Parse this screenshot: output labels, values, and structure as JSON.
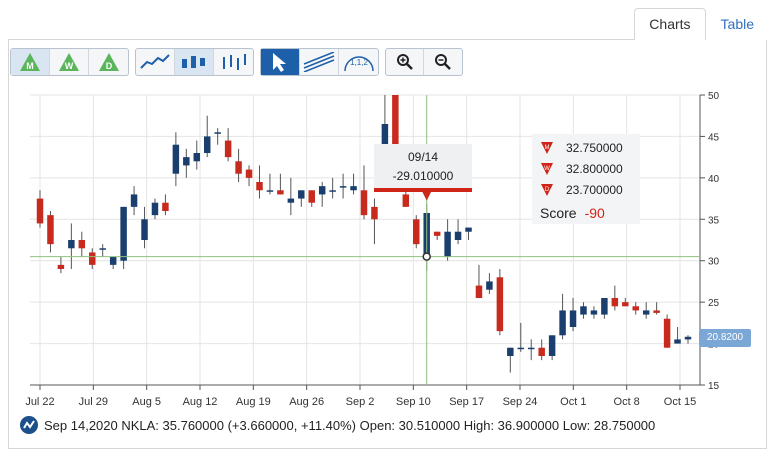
{
  "tabs": [
    {
      "label": "Charts",
      "active": true
    },
    {
      "label": "Table",
      "active": false
    }
  ],
  "toolbar": {
    "signal_buttons": [
      "M",
      "W",
      "D"
    ],
    "chart_type_icons": [
      "line-chart-icon",
      "candlestick-chart-icon",
      "ohlc-chart-icon"
    ],
    "tool_icons": [
      "pointer-icon",
      "trend-line-icon",
      "fibonacci-icon"
    ],
    "zoom_icons": [
      "zoom-in-icon",
      "zoom-out-icon"
    ]
  },
  "colors": {
    "up": "#1a3f6f",
    "down": "#c82a1e",
    "grid": "#e4e4e4",
    "crosshair": "#8fbf7f",
    "accent": "#2f6fbf"
  },
  "chart_data": {
    "type": "candlestick",
    "ylim": [
      15,
      50
    ],
    "yticks": [
      15,
      20,
      25,
      30,
      35,
      40,
      45,
      50
    ],
    "xticks": [
      "Jul 22",
      "Jul 29",
      "Aug 5",
      "Aug 12",
      "Aug 19",
      "Aug 26",
      "Sep 2",
      "Sep 10",
      "Sep 17",
      "Sep 24",
      "Oct 1",
      "Oct 8",
      "Oct 15"
    ],
    "candles": [
      {
        "o": 37.5,
        "h": 38.5,
        "l": 34.0,
        "c": 34.5
      },
      {
        "o": 35.5,
        "h": 36.0,
        "l": 31.0,
        "c": 32.0
      },
      {
        "o": 29.5,
        "h": 30.5,
        "l": 28.5,
        "c": 29.0
      },
      {
        "o": 31.5,
        "h": 34.5,
        "l": 29.0,
        "c": 32.5
      },
      {
        "o": 32.5,
        "h": 33.5,
        "l": 30.5,
        "c": 31.5
      },
      {
        "o": 31.0,
        "h": 31.5,
        "l": 29.0,
        "c": 29.5
      },
      {
        "o": 31.5,
        "h": 32.0,
        "l": 30.5,
        "c": 31.5
      },
      {
        "o": 29.5,
        "h": 30.5,
        "l": 29.0,
        "c": 30.5
      },
      {
        "o": 30.0,
        "h": 36.5,
        "l": 29.0,
        "c": 36.5
      },
      {
        "o": 36.5,
        "h": 39.0,
        "l": 35.5,
        "c": 38.0
      },
      {
        "o": 32.5,
        "h": 36.5,
        "l": 31.5,
        "c": 35.0
      },
      {
        "o": 35.5,
        "h": 37.5,
        "l": 35.0,
        "c": 37.0
      },
      {
        "o": 37.0,
        "h": 38.0,
        "l": 35.5,
        "c": 36.0
      },
      {
        "o": 40.5,
        "h": 45.5,
        "l": 39.0,
        "c": 44.0
      },
      {
        "o": 41.5,
        "h": 43.5,
        "l": 40.0,
        "c": 42.5
      },
      {
        "o": 42.0,
        "h": 44.5,
        "l": 41.0,
        "c": 43.0
      },
      {
        "o": 43.0,
        "h": 47.5,
        "l": 42.5,
        "c": 45.0
      },
      {
        "o": 45.5,
        "h": 46.0,
        "l": 44.0,
        "c": 45.5
      },
      {
        "o": 44.5,
        "h": 46.0,
        "l": 42.0,
        "c": 42.5
      },
      {
        "o": 42.0,
        "h": 43.5,
        "l": 39.5,
        "c": 40.5
      },
      {
        "o": 41.0,
        "h": 41.5,
        "l": 39.0,
        "c": 40.0
      },
      {
        "o": 39.5,
        "h": 41.5,
        "l": 37.5,
        "c": 38.5
      },
      {
        "o": 38.5,
        "h": 40.5,
        "l": 38.0,
        "c": 38.5
      },
      {
        "o": 38.5,
        "h": 40.5,
        "l": 38.0,
        "c": 38.0
      },
      {
        "o": 37.0,
        "h": 40.0,
        "l": 35.5,
        "c": 37.5
      },
      {
        "o": 37.5,
        "h": 38.5,
        "l": 36.5,
        "c": 38.5
      },
      {
        "o": 38.5,
        "h": 38.5,
        "l": 36.5,
        "c": 37.0
      },
      {
        "o": 38.0,
        "h": 39.5,
        "l": 36.5,
        "c": 39.0
      },
      {
        "o": 38.5,
        "h": 40.0,
        "l": 37.5,
        "c": 38.5
      },
      {
        "o": 39.0,
        "h": 40.5,
        "l": 37.5,
        "c": 39.0
      },
      {
        "o": 38.5,
        "h": 40.5,
        "l": 38.0,
        "c": 39.0
      },
      {
        "o": 38.5,
        "h": 41.5,
        "l": 35.0,
        "c": 35.5
      },
      {
        "o": 36.5,
        "h": 37.5,
        "l": 32.0,
        "c": 35.0
      },
      {
        "o": 44.0,
        "h": 50.5,
        "l": 41.0,
        "c": 46.5
      },
      {
        "o": 50.0,
        "h": 51.0,
        "l": 40.5,
        "c": 42.0
      },
      {
        "o": 38.0,
        "h": 39.0,
        "l": 36.5,
        "c": 36.5
      },
      {
        "o": 35.0,
        "h": 35.5,
        "l": 31.5,
        "c": 32.0
      },
      {
        "o": 30.5,
        "h": 36.9,
        "l": 28.75,
        "c": 35.76
      },
      {
        "o": 33.5,
        "h": 33.5,
        "l": 32.5,
        "c": 33.0
      },
      {
        "o": 30.5,
        "h": 35.0,
        "l": 30.0,
        "c": 33.5
      },
      {
        "o": 32.5,
        "h": 35.0,
        "l": 32.0,
        "c": 33.5
      },
      {
        "o": 33.5,
        "h": 34.0,
        "l": 32.5,
        "c": 34.0
      },
      {
        "o": 27.0,
        "h": 29.5,
        "l": 25.5,
        "c": 25.5
      },
      {
        "o": 26.5,
        "h": 28.5,
        "l": 26.0,
        "c": 27.5
      },
      {
        "o": 28.0,
        "h": 29.0,
        "l": 21.0,
        "c": 21.5
      },
      {
        "o": 18.5,
        "h": 19.5,
        "l": 16.5,
        "c": 19.5
      },
      {
        "o": 19.5,
        "h": 22.5,
        "l": 19.0,
        "c": 19.5
      },
      {
        "o": 19.5,
        "h": 20.5,
        "l": 18.0,
        "c": 19.5
      },
      {
        "o": 19.5,
        "h": 20.5,
        "l": 18.0,
        "c": 18.5
      },
      {
        "o": 18.5,
        "h": 21.0,
        "l": 18.0,
        "c": 21.0
      },
      {
        "o": 21.0,
        "h": 26.0,
        "l": 20.5,
        "c": 24.0
      },
      {
        "o": 22.0,
        "h": 25.5,
        "l": 21.5,
        "c": 24.0
      },
      {
        "o": 23.5,
        "h": 25.0,
        "l": 23.0,
        "c": 24.5
      },
      {
        "o": 23.5,
        "h": 24.5,
        "l": 23.0,
        "c": 24.0
      },
      {
        "o": 23.5,
        "h": 25.5,
        "l": 23.0,
        "c": 25.5
      },
      {
        "o": 25.5,
        "h": 27.0,
        "l": 24.0,
        "c": 24.5
      },
      {
        "o": 25.0,
        "h": 25.5,
        "l": 24.5,
        "c": 24.5
      },
      {
        "o": 24.5,
        "h": 25.0,
        "l": 23.5,
        "c": 24.0
      },
      {
        "o": 23.5,
        "h": 25.0,
        "l": 23.0,
        "c": 24.0
      },
      {
        "o": 24.0,
        "h": 25.0,
        "l": 23.5,
        "c": 23.7
      },
      {
        "o": 23.0,
        "h": 23.5,
        "l": 19.5,
        "c": 19.5
      },
      {
        "o": 20.0,
        "h": 22.0,
        "l": 20.0,
        "c": 20.5
      },
      {
        "o": 20.5,
        "h": 21.0,
        "l": 20.0,
        "c": 20.82
      }
    ],
    "crosshair_value": 30.5,
    "crosshair_index": 37,
    "tooltip": {
      "date": "09/14",
      "value": "-29.010000"
    },
    "signals": [
      {
        "label": "M",
        "value": "32.750000"
      },
      {
        "label": "W",
        "value": "32.800000"
      },
      {
        "label": "D",
        "value": "23.700000"
      }
    ],
    "score_label": "Score",
    "score_value": "-90",
    "last_price_label": "20.8200"
  },
  "footer": {
    "text": "Sep 14,2020 NKLA: 35.760000 (+3.660000, +11.40%) Open: 30.510000 High: 36.900000 Low: 28.750000"
  }
}
